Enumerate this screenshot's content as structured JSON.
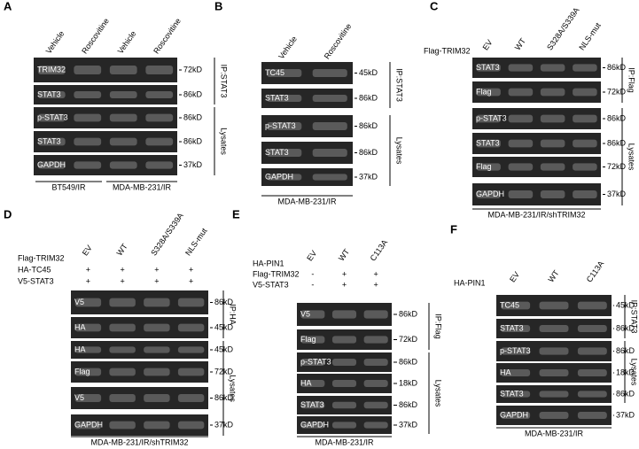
{
  "panels": [
    {
      "label": "A",
      "columns": [
        "Vehicle",
        "Roscovitine",
        "Vehicle",
        "Roscovitine"
      ],
      "treatments": [],
      "rows": [
        {
          "name": "TRIM32",
          "marker": "72kD"
        },
        {
          "name": "STAT3",
          "marker": "86kD"
        },
        {
          "name": "p-STAT3",
          "marker": "86kD"
        },
        {
          "name": "STAT3",
          "marker": "86kD"
        },
        {
          "name": "GAPDH",
          "marker": "37kD"
        }
      ],
      "groups": [
        "IP:STAT3",
        "Lysates"
      ],
      "cell_lines": [
        "BT549/IR",
        "MDA-MB-231/IR"
      ]
    },
    {
      "label": "B",
      "columns": [
        "Vehicle",
        "Roscovitine"
      ],
      "treatments": [],
      "rows": [
        {
          "name": "TC45",
          "marker": "45kD"
        },
        {
          "name": "STAT3",
          "marker": "86kD"
        },
        {
          "name": "p-STAT3",
          "marker": "86kD"
        },
        {
          "name": "STAT3",
          "marker": "86kD"
        },
        {
          "name": "GAPDH",
          "marker": "37kD"
        }
      ],
      "groups": [
        "IP:STAT3",
        "Lysates"
      ],
      "cell_lines": [
        "MDA-MB-231/IR"
      ]
    },
    {
      "label": "C",
      "columns": [
        "EV",
        "WT",
        "S328A/S339A",
        "NLS-mut"
      ],
      "treatments": [
        {
          "name": "Flag-TRIM32",
          "values": []
        }
      ],
      "rows": [
        {
          "name": "STAT3",
          "marker": "86kD"
        },
        {
          "name": "Flag",
          "marker": "72kD"
        },
        {
          "name": "p-STAT3",
          "marker": "86kD"
        },
        {
          "name": "STAT3",
          "marker": "86kD"
        },
        {
          "name": "Flag",
          "marker": "72kD"
        },
        {
          "name": "GAPDH",
          "marker": "37kD"
        }
      ],
      "groups": [
        "IP:Flag",
        "Lysates"
      ],
      "cell_lines": [
        "MDA-MB-231/IR/shTRIM32"
      ]
    },
    {
      "label": "D",
      "columns": [
        "EV",
        "WT",
        "S328A/S339A",
        "NLS-mut"
      ],
      "treatments": [
        {
          "name": "Flag-TRIM32",
          "values": []
        },
        {
          "name": "HA-TC45",
          "values": [
            "+",
            "+",
            "+",
            "+"
          ]
        },
        {
          "name": "V5-STAT3",
          "values": [
            "+",
            "+",
            "+",
            "+"
          ]
        }
      ],
      "rows": [
        {
          "name": "V5",
          "marker": "86kD"
        },
        {
          "name": "HA",
          "marker": "45kD"
        },
        {
          "name": "HA",
          "marker": "45kD"
        },
        {
          "name": "Flag",
          "marker": "72kD"
        },
        {
          "name": "V5",
          "marker": "86kD"
        },
        {
          "name": "GAPDH",
          "marker": "37kD"
        }
      ],
      "groups": [
        "IP:HA",
        "Lysates"
      ],
      "cell_lines": [
        "MDA-MB-231/IR/shTRIM32"
      ]
    },
    {
      "label": "E",
      "columns": [
        "EV",
        "WT",
        "C113A"
      ],
      "treatments": [
        {
          "name": "HA-PIN1",
          "values": []
        },
        {
          "name": "Flag-TRIM32",
          "values": [
            "-",
            "+",
            "+"
          ]
        },
        {
          "name": "V5-STAT3",
          "values": [
            "-",
            "+",
            "+"
          ]
        }
      ],
      "rows": [
        {
          "name": "V5",
          "marker": "86kD"
        },
        {
          "name": "Flag",
          "marker": "72kD"
        },
        {
          "name": "p-STAT3",
          "marker": "86kD"
        },
        {
          "name": "HA",
          "marker": "18kD"
        },
        {
          "name": "STAT3",
          "marker": "86kD"
        },
        {
          "name": "GAPDH",
          "marker": "37kD"
        }
      ],
      "groups": [
        "IP:Flag",
        "Lysates"
      ],
      "cell_lines": [
        "MDA-MB-231/IR"
      ]
    },
    {
      "label": "F",
      "columns": [
        "EV",
        "WT",
        "C113A"
      ],
      "treatments": [
        {
          "name": "HA-PIN1",
          "values": []
        }
      ],
      "rows": [
        {
          "name": "TC45",
          "marker": "45kD"
        },
        {
          "name": "STAT3",
          "marker": "86kD"
        },
        {
          "name": "p-STAT3",
          "marker": "86kD"
        },
        {
          "name": "HA",
          "marker": "18kD"
        },
        {
          "name": "STAT3",
          "marker": "86kD"
        },
        {
          "name": "GAPDH",
          "marker": "37kD"
        }
      ],
      "groups": [
        "IP:STAT3",
        "Lysates"
      ],
      "cell_lines": [
        "MDA-MB-231/IR"
      ]
    }
  ]
}
